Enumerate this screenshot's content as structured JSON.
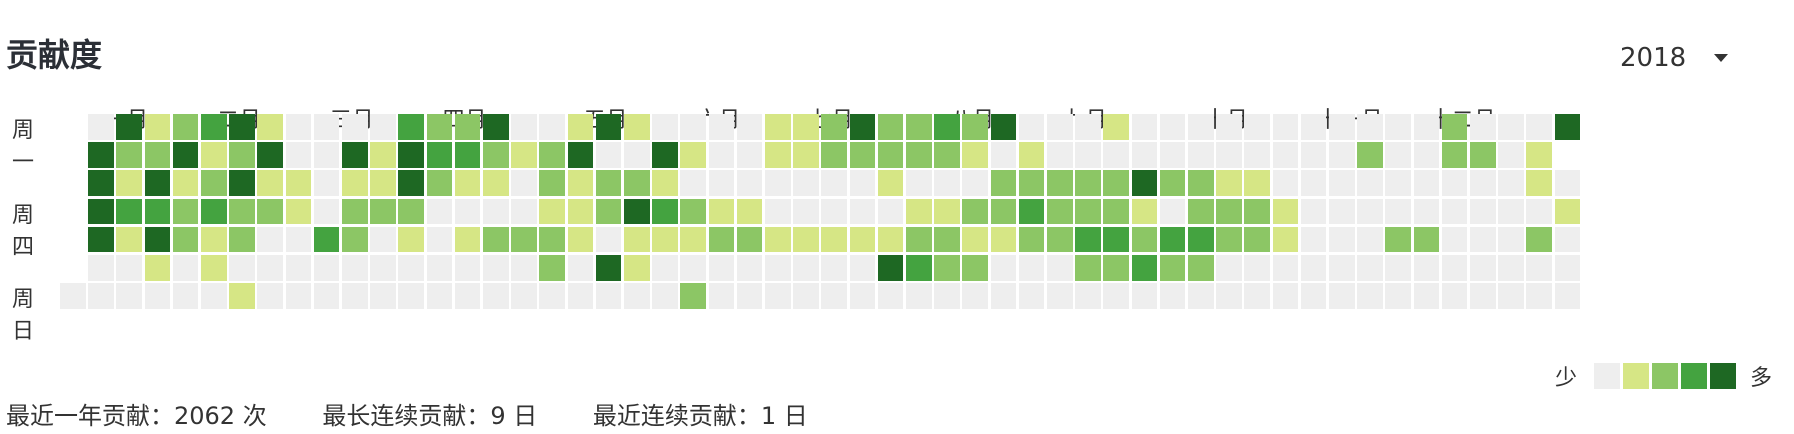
{
  "title": "贡献度",
  "year_select": {
    "value": "2018",
    "caret_icon": "caret-down-icon"
  },
  "weekday_labels": [
    {
      "label": "周一",
      "row": 0
    },
    {
      "label": "周四",
      "row": 3
    },
    {
      "label": "周日",
      "row": 6
    }
  ],
  "month_labels": [
    {
      "label": "一月",
      "week": 1
    },
    {
      "label": "二月",
      "week": 5
    },
    {
      "label": "三月",
      "week": 9
    },
    {
      "label": "四月",
      "week": 13
    },
    {
      "label": "五月",
      "week": 18
    },
    {
      "label": "六月",
      "week": 22
    },
    {
      "label": "七月",
      "week": 26
    },
    {
      "label": "八月",
      "week": 31
    },
    {
      "label": "九月",
      "week": 35
    },
    {
      "label": "十月",
      "week": 40
    },
    {
      "label": "十一月",
      "week": 44
    },
    {
      "label": "十二月",
      "week": 48
    }
  ],
  "colors": [
    "#eeeeee",
    "#d6e685",
    "#8cc665",
    "#44a340",
    "#1e6823"
  ],
  "chart_data": {
    "type": "heatmap",
    "rows": 7,
    "weeks": 54,
    "levels": [
      "-0412341000032240014100001124223240001000000000002000430010",
      "-4224124004143321240041001122222101000000000002002201",
      "-4141241101142110212210000000100022222422110000000001000100000",
      "-43323221022200001124321100000112232221022210000000001000000001",
      "-4142120032010122210111221111122112233233221000220002000000000000",
      "-00101000000000002041000000004322000223220000000000000000000",
      "0000001000000000000000200000000000000000000000000000000000000"
    ]
  },
  "legend": {
    "less": "少",
    "more": "多"
  },
  "stats": [
    {
      "text": "最近一年贡献：2062 次"
    },
    {
      "text": "最长连续贡献：9 日"
    },
    {
      "text": "最近连续贡献：1 日"
    }
  ]
}
